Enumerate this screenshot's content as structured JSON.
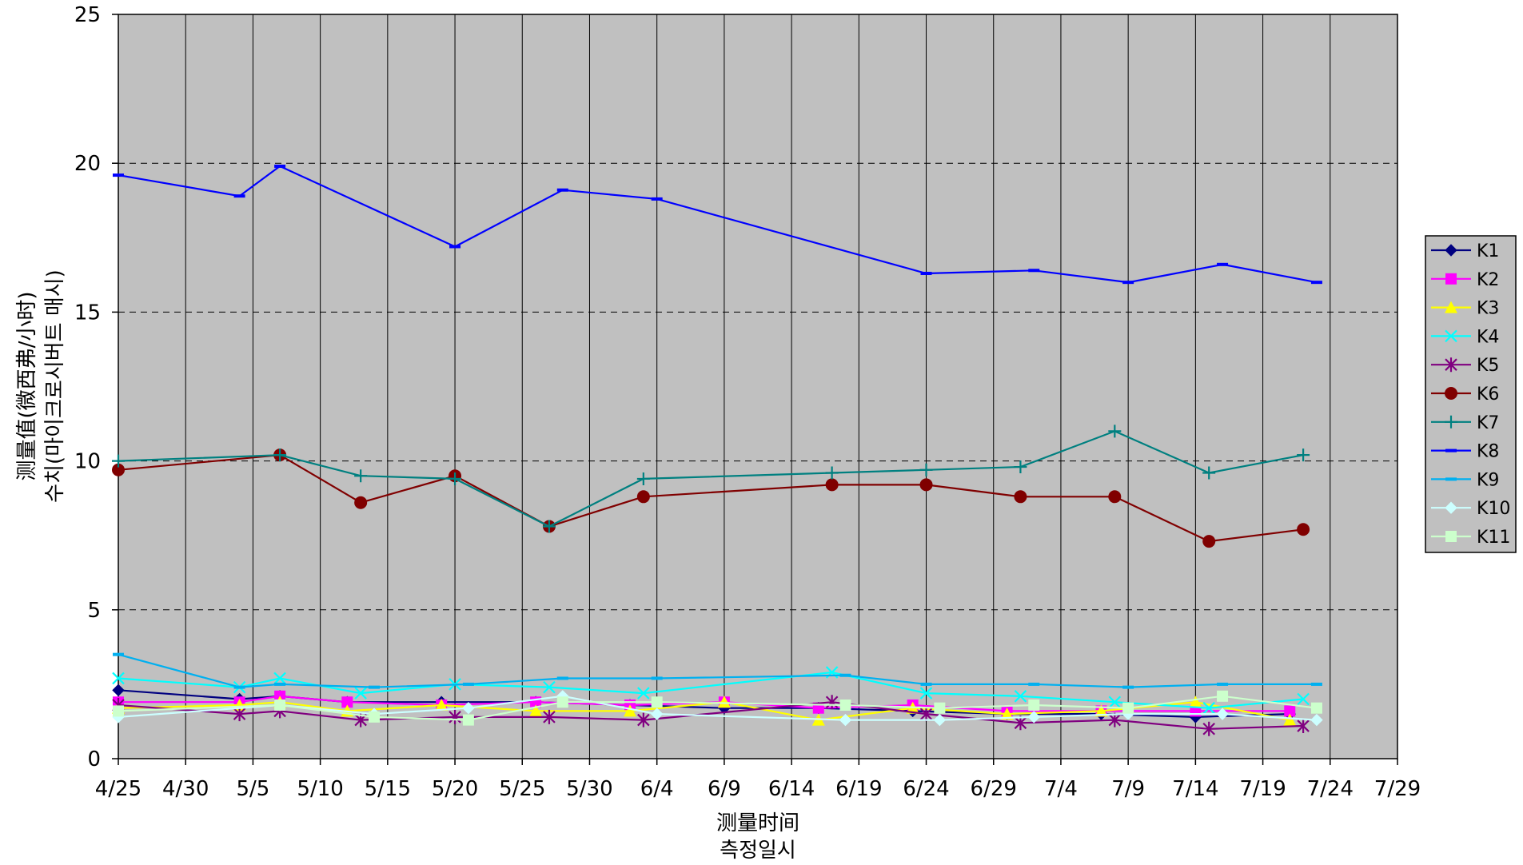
{
  "chart_data": {
    "type": "line",
    "title": "",
    "xlabel": [
      "测量时间",
      "측정일시"
    ],
    "ylabel": [
      "测量值(微西弗/小时)",
      "수치(마이크로시버트 매시)"
    ],
    "xlim": [
      "4/25",
      "7/29"
    ],
    "ylim": [
      0,
      25
    ],
    "xticks": [
      "4/25",
      "4/30",
      "5/5",
      "5/10",
      "5/15",
      "5/20",
      "5/25",
      "5/30",
      "6/4",
      "6/9",
      "6/14",
      "6/19",
      "6/24",
      "6/29",
      "7/4",
      "7/9",
      "7/14",
      "7/19",
      "7/24",
      "7/29"
    ],
    "yticks": [
      0,
      5,
      10,
      15,
      20,
      25
    ],
    "grid": "horizontal dashed and vertical solid",
    "plot_background": "#c0c0c0",
    "legend_position": "right",
    "series": [
      {
        "name": "K1",
        "color": "#000080",
        "marker": "diamond",
        "x": [
          "4/25",
          "5/4",
          "5/7",
          "5/12",
          "5/19",
          "5/26",
          "6/2",
          "6/9",
          "6/16",
          "6/23",
          "6/30",
          "7/7",
          "7/14",
          "7/21"
        ],
        "y": [
          2.3,
          2.0,
          2.1,
          1.9,
          1.9,
          1.9,
          1.8,
          1.7,
          1.7,
          1.6,
          1.5,
          1.5,
          1.4,
          1.5
        ]
      },
      {
        "name": "K2",
        "color": "#ff00ff",
        "marker": "square",
        "x": [
          "4/25",
          "5/4",
          "5/7",
          "5/12",
          "5/19",
          "5/26",
          "6/2",
          "6/9",
          "6/16",
          "6/23",
          "6/30",
          "7/7",
          "7/14",
          "7/21"
        ],
        "y": [
          1.9,
          1.9,
          2.1,
          1.9,
          1.8,
          1.9,
          1.8,
          1.9,
          1.7,
          1.8,
          1.6,
          1.6,
          1.6,
          1.6
        ]
      },
      {
        "name": "K3",
        "color": "#ffff00",
        "marker": "triangle",
        "x": [
          "4/25",
          "5/4",
          "5/7",
          "5/12",
          "5/19",
          "5/26",
          "6/2",
          "6/9",
          "6/16",
          "6/23",
          "6/30",
          "7/7",
          "7/14",
          "7/21"
        ],
        "y": [
          1.7,
          1.8,
          1.9,
          1.6,
          1.8,
          1.6,
          1.6,
          1.9,
          1.3,
          1.7,
          1.5,
          1.6,
          1.9,
          1.3
        ]
      },
      {
        "name": "K4",
        "color": "#00ffff",
        "marker": "x",
        "x": [
          "4/25",
          "5/4",
          "5/7",
          "5/13",
          "5/20",
          "5/27",
          "6/3",
          "6/17",
          "6/24",
          "7/1",
          "7/8",
          "7/15",
          "7/22"
        ],
        "y": [
          2.7,
          2.4,
          2.7,
          2.2,
          2.5,
          2.4,
          2.2,
          2.9,
          2.2,
          2.1,
          1.9,
          1.7,
          2.0
        ]
      },
      {
        "name": "K5",
        "color": "#800080",
        "marker": "star",
        "x": [
          "4/25",
          "5/4",
          "5/7",
          "5/13",
          "5/20",
          "5/27",
          "6/3",
          "6/17",
          "6/24",
          "7/1",
          "7/8",
          "7/15",
          "7/22"
        ],
        "y": [
          1.8,
          1.5,
          1.6,
          1.3,
          1.4,
          1.4,
          1.3,
          1.9,
          1.5,
          1.2,
          1.3,
          1.0,
          1.1
        ]
      },
      {
        "name": "K6",
        "color": "#800000",
        "marker": "circle",
        "x": [
          "4/25",
          "5/7",
          "5/13",
          "5/20",
          "5/27",
          "6/3",
          "6/17",
          "6/24",
          "7/1",
          "7/8",
          "7/15",
          "7/22"
        ],
        "y": [
          9.7,
          10.2,
          8.6,
          9.5,
          7.8,
          8.8,
          9.2,
          9.2,
          8.8,
          8.8,
          7.3,
          7.7
        ]
      },
      {
        "name": "K7",
        "color": "#008080",
        "marker": "plus",
        "x": [
          "4/25",
          "5/7",
          "5/13",
          "5/20",
          "5/27",
          "6/3",
          "6/17",
          "6/24",
          "7/1",
          "7/8",
          "7/15",
          "7/22"
        ],
        "y": [
          10.0,
          10.2,
          9.5,
          9.4,
          7.8,
          9.4,
          9.6,
          9.7,
          9.8,
          11.0,
          9.6,
          10.2
        ]
      },
      {
        "name": "K8",
        "color": "#0000ff",
        "marker": "dash",
        "x": [
          "4/25",
          "5/4",
          "5/7",
          "5/20",
          "5/28",
          "6/4",
          "6/24",
          "7/2",
          "7/9",
          "7/16",
          "7/23"
        ],
        "y": [
          19.6,
          18.9,
          19.9,
          17.2,
          19.1,
          18.8,
          16.3,
          16.4,
          16.0,
          16.6,
          16.0
        ]
      },
      {
        "name": "K9",
        "color": "#00b0f0",
        "marker": "dash",
        "x": [
          "4/25",
          "5/4",
          "5/7",
          "5/14",
          "5/21",
          "5/28",
          "6/4",
          "6/18",
          "6/24",
          "7/2",
          "7/9",
          "7/16",
          "7/23"
        ],
        "y": [
          3.5,
          2.4,
          2.5,
          2.4,
          2.5,
          2.7,
          2.7,
          2.8,
          2.5,
          2.5,
          2.4,
          2.5,
          2.5
        ]
      },
      {
        "name": "K10",
        "color": "#ccffff",
        "marker": "diamond",
        "x": [
          "4/25",
          "5/7",
          "5/14",
          "5/21",
          "5/28",
          "6/4",
          "6/18",
          "6/25",
          "7/2",
          "7/9",
          "7/16",
          "7/23"
        ],
        "y": [
          1.4,
          1.8,
          1.5,
          1.7,
          2.1,
          1.5,
          1.3,
          1.3,
          1.4,
          1.5,
          1.5,
          1.3
        ]
      },
      {
        "name": "K11",
        "color": "#ccffcc",
        "marker": "square",
        "x": [
          "4/25",
          "5/7",
          "5/14",
          "5/21",
          "5/28",
          "6/4",
          "6/18",
          "6/25",
          "7/2",
          "7/9",
          "7/16",
          "7/23"
        ],
        "y": [
          1.6,
          1.8,
          1.4,
          1.3,
          1.9,
          1.9,
          1.8,
          1.7,
          1.8,
          1.7,
          2.1,
          1.7
        ]
      }
    ]
  }
}
